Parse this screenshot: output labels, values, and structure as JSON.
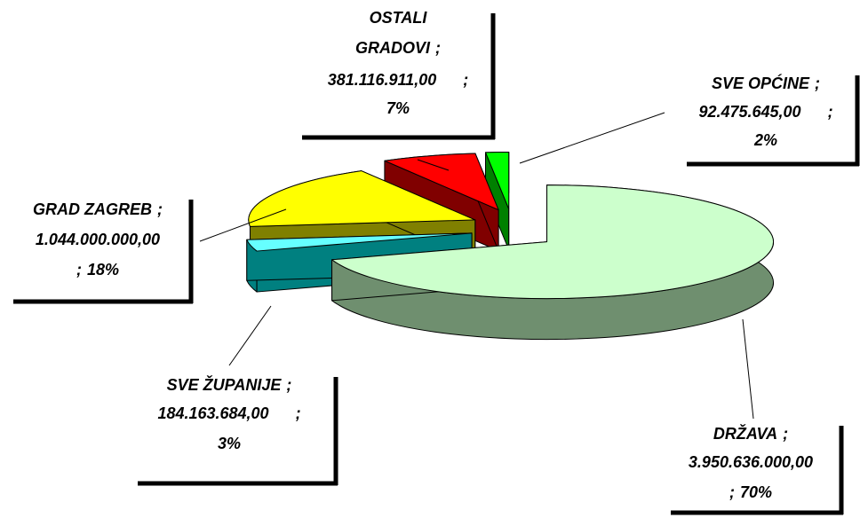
{
  "chart_data": {
    "type": "pie3d",
    "categories": [
      "DRŽAVA",
      "SVE ŽUPANIJE",
      "GRAD ZAGREB",
      "OSTALI GRADOVI",
      "SVE OPĆINE"
    ],
    "values": [
      3950636000,
      184163684,
      1044000000,
      381116911,
      92475645
    ],
    "value_labels": [
      "3.950.636.000,00",
      "184.163.684,00",
      "1.044.000.000,00",
      "381.116.911,00",
      "92.475.645,00"
    ],
    "percents": [
      70,
      3,
      18,
      7,
      2
    ],
    "percent_labels": [
      "70%",
      "3%",
      "18%",
      "7%",
      "2%"
    ],
    "separator": ";",
    "colors": [
      "#ccffcc",
      "#66ffff",
      "#ffff00",
      "#ff0000",
      "#00ff00"
    ],
    "side_colors": [
      "#6f8f6f",
      "#008080",
      "#808000",
      "#800000",
      "#008000"
    ]
  }
}
